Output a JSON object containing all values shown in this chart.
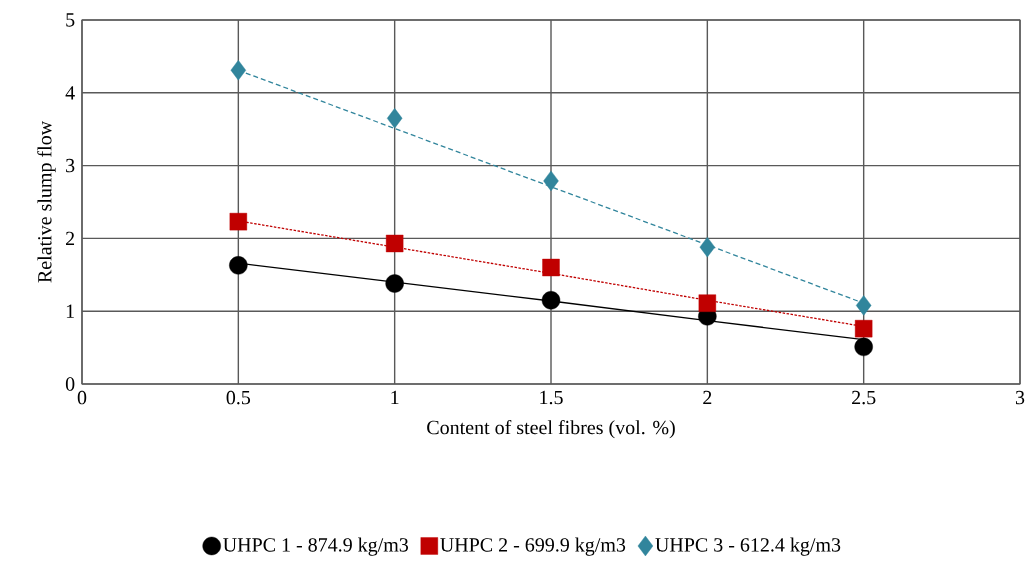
{
  "chart_data": {
    "type": "scatter",
    "xlabel": "Content of steel fibres (vol. %)",
    "ylabel": "Relative  slump flow",
    "xlim": [
      0,
      3
    ],
    "ylim": [
      0,
      5
    ],
    "xticks": [
      0,
      0.5,
      1,
      1.5,
      2,
      2.5,
      3
    ],
    "yticks": [
      0,
      1,
      2,
      3,
      4,
      5
    ],
    "grid": true,
    "legend": "bottom",
    "x": [
      0.5,
      1,
      1.5,
      2,
      2.5
    ],
    "series": [
      {
        "name": "UHPC 1 - 874.9 kg/m3",
        "color": "#000000",
        "marker": "circle",
        "values": [
          1.63,
          1.38,
          1.15,
          0.93,
          0.51
        ]
      },
      {
        "name": "UHPC 2 - 699.9 kg/m3",
        "color": "#c00000",
        "marker": "square",
        "values": [
          2.23,
          1.93,
          1.6,
          1.11,
          0.76
        ]
      },
      {
        "name": "UHPC 3 - 612.4 kg/m3",
        "color": "#31859c",
        "marker": "diamond",
        "values": [
          4.31,
          3.65,
          2.79,
          1.88,
          1.08
        ]
      },
      {
        "type": "line",
        "color": "#000000",
        "line_style": "solid",
        "values": [
          1.66,
          1.4,
          1.14,
          0.87,
          0.61
        ]
      },
      {
        "type": "line",
        "color": "#c00000",
        "line_style": "dotted",
        "values": [
          2.24,
          1.88,
          1.52,
          1.15,
          0.79
        ]
      },
      {
        "type": "line",
        "color": "#31859c",
        "line_style": "dashed",
        "values": [
          4.31,
          3.51,
          2.71,
          1.91,
          1.11
        ]
      }
    ]
  }
}
